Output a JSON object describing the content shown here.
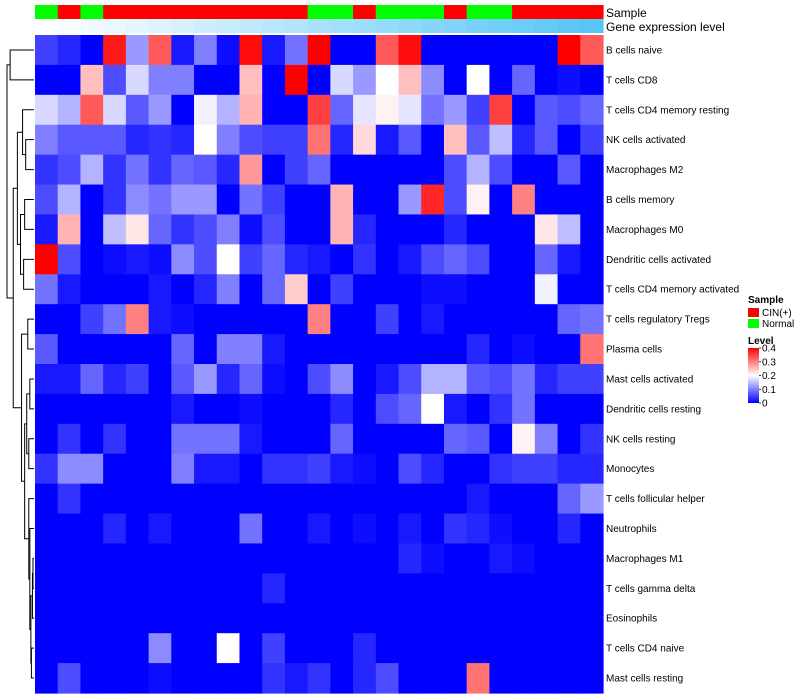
{
  "chart_data": {
    "type": "heatmap",
    "title": "",
    "annotation_rows": [
      "Sample",
      "Gene expression level"
    ],
    "sample_groups": [
      "Normal",
      "CIN(+)",
      "Normal",
      "CIN(+)",
      "CIN(+)",
      "CIN(+)",
      "CIN(+)",
      "CIN(+)",
      "CIN(+)",
      "CIN(+)",
      "CIN(+)",
      "CIN(+)",
      "Normal",
      "Normal",
      "CIN(+)",
      "Normal",
      "Normal",
      "Normal",
      "CIN(+)",
      "Normal",
      "Normal",
      "CIN(+)",
      "CIN(+)",
      "CIN(+)",
      "CIN(+)"
    ],
    "gene_expression_level": [
      0,
      0.04,
      0.08,
      0.12,
      0.16,
      0.2,
      0.24,
      0.28,
      0.32,
      0.36,
      0.4,
      0.44,
      0.48,
      0.52,
      0.56,
      0.6,
      0.64,
      0.68,
      0.72,
      0.76,
      0.8,
      0.84,
      0.88,
      0.92,
      0.96
    ],
    "rows": [
      "B cells naive",
      "T cells CD8",
      "T cells CD4 memory resting",
      "NK cells activated",
      "Macrophages M2",
      "B cells memory",
      "Macrophages M0",
      "Dendritic cells activated",
      "T cells CD4 memory activated",
      "T cells regulatory  Tregs",
      "Plasma cells",
      "Mast cells activated",
      "Dendritic cells resting",
      "NK cells resting",
      "Monocytes",
      "T cells follicular helper",
      "Neutrophils",
      "Macrophages M1",
      "T cells gamma delta",
      "Eosinophils",
      "T cells CD4 naive",
      "Mast cells resting"
    ],
    "values": [
      [
        0.05,
        0.03,
        0.0,
        0.38,
        0.12,
        0.33,
        0.02,
        0.1,
        0.01,
        0.39,
        0.02,
        0.09,
        0.4,
        0.0,
        0.0,
        0.33,
        0.39,
        0.0,
        0.0,
        0.0,
        0.0,
        0.0,
        0.0,
        0.4,
        0.33
      ],
      [
        0.0,
        0.0,
        0.25,
        0.06,
        0.17,
        0.1,
        0.1,
        0.0,
        0.0,
        0.25,
        0.0,
        0.4,
        0.0,
        0.17,
        0.12,
        0.2,
        0.25,
        0.11,
        0.0,
        0.2,
        0.0,
        0.08,
        0.0,
        0.01,
        0.0
      ],
      [
        0.17,
        0.14,
        0.33,
        0.17,
        0.07,
        0.12,
        0.0,
        0.19,
        0.14,
        0.26,
        0.0,
        0.0,
        0.35,
        0.08,
        0.18,
        0.21,
        0.18,
        0.09,
        0.12,
        0.05,
        0.35,
        0.0,
        0.07,
        0.06,
        0.08
      ],
      [
        0.1,
        0.07,
        0.07,
        0.07,
        0.03,
        0.04,
        0.03,
        0.2,
        0.1,
        0.06,
        0.05,
        0.05,
        0.31,
        0.03,
        0.23,
        0.02,
        0.07,
        0.0,
        0.25,
        0.07,
        0.15,
        0.03,
        0.07,
        0.0,
        0.05
      ],
      [
        0.04,
        0.06,
        0.14,
        0.04,
        0.09,
        0.04,
        0.08,
        0.07,
        0.03,
        0.28,
        0.0,
        0.05,
        0.08,
        0.0,
        0.0,
        0.0,
        0.0,
        0.0,
        0.06,
        0.14,
        0.06,
        0.0,
        0.0,
        0.07,
        0.0
      ],
      [
        0.06,
        0.14,
        0.0,
        0.04,
        0.11,
        0.09,
        0.12,
        0.12,
        0.0,
        0.09,
        0.05,
        0.0,
        0.0,
        0.26,
        0.0,
        0.0,
        0.12,
        0.37,
        0.06,
        0.21,
        0.0,
        0.3,
        0.0,
        0.0,
        0.0
      ],
      [
        0.02,
        0.26,
        0.0,
        0.15,
        0.22,
        0.08,
        0.04,
        0.06,
        0.1,
        0.01,
        0.06,
        0.0,
        0.0,
        0.26,
        0.03,
        0.0,
        0.0,
        0.0,
        0.03,
        0.0,
        0.0,
        0.0,
        0.22,
        0.15,
        0.0
      ],
      [
        0.4,
        0.06,
        0.0,
        0.01,
        0.02,
        0.01,
        0.11,
        0.06,
        0.2,
        0.05,
        0.08,
        0.03,
        0.02,
        0.0,
        0.04,
        0.0,
        0.02,
        0.06,
        0.08,
        0.06,
        0.0,
        0.0,
        0.08,
        0.02,
        0.0
      ],
      [
        0.09,
        0.02,
        0.0,
        0.0,
        0.0,
        0.02,
        0.0,
        0.03,
        0.1,
        0.0,
        0.08,
        0.24,
        0.0,
        0.05,
        0.0,
        0.0,
        0.0,
        0.01,
        0.01,
        0.0,
        0.0,
        0.0,
        0.19,
        0.0,
        0.0
      ],
      [
        0.0,
        0.0,
        0.05,
        0.09,
        0.3,
        0.02,
        0.01,
        0.0,
        0.0,
        0.0,
        0.0,
        0.0,
        0.3,
        0.0,
        0.0,
        0.05,
        0.0,
        0.02,
        0.0,
        0.0,
        0.0,
        0.0,
        0.0,
        0.08,
        0.09
      ],
      [
        0.07,
        0.0,
        0.0,
        0.0,
        0.0,
        0.0,
        0.08,
        0.0,
        0.1,
        0.1,
        0.02,
        0.0,
        0.0,
        0.0,
        0.0,
        0.0,
        0.0,
        0.0,
        0.0,
        0.03,
        0.0,
        0.01,
        0.0,
        0.0,
        0.31
      ],
      [
        0.02,
        0.02,
        0.08,
        0.03,
        0.05,
        0.0,
        0.07,
        0.12,
        0.03,
        0.08,
        0.01,
        0.0,
        0.06,
        0.11,
        0.0,
        0.02,
        0.06,
        0.14,
        0.14,
        0.07,
        0.06,
        0.09,
        0.03,
        0.05,
        0.05
      ],
      [
        0.0,
        0.0,
        0.0,
        0.0,
        0.0,
        0.0,
        0.02,
        0.0,
        0.0,
        0.01,
        0.0,
        0.0,
        0.0,
        0.03,
        0.0,
        0.06,
        0.08,
        0.2,
        0.02,
        0.0,
        0.04,
        0.09,
        0.0,
        0.0,
        0.0
      ],
      [
        0.0,
        0.04,
        0.0,
        0.04,
        0.0,
        0.0,
        0.09,
        0.09,
        0.09,
        0.02,
        0.0,
        0.0,
        0.0,
        0.08,
        0.0,
        0.0,
        0.0,
        0.0,
        0.08,
        0.07,
        0.0,
        0.21,
        0.1,
        0.0,
        0.04
      ],
      [
        0.04,
        0.11,
        0.11,
        0.0,
        0.0,
        0.0,
        0.1,
        0.02,
        0.02,
        0.0,
        0.04,
        0.04,
        0.05,
        0.02,
        0.01,
        0.0,
        0.06,
        0.03,
        0.0,
        0.0,
        0.04,
        0.05,
        0.05,
        0.03,
        0.03
      ],
      [
        0.0,
        0.04,
        0.0,
        0.0,
        0.0,
        0.0,
        0.0,
        0.0,
        0.0,
        0.0,
        0.0,
        0.0,
        0.0,
        0.0,
        0.0,
        0.0,
        0.0,
        0.0,
        0.0,
        0.02,
        0.0,
        0.0,
        0.0,
        0.08,
        0.12
      ],
      [
        0.0,
        0.0,
        0.0,
        0.03,
        0.0,
        0.02,
        0.0,
        0.0,
        0.0,
        0.09,
        0.0,
        0.0,
        0.02,
        0.0,
        0.01,
        0.0,
        0.02,
        0.0,
        0.04,
        0.03,
        0.01,
        0.0,
        0.0,
        0.03,
        0.0
      ],
      [
        0.0,
        0.0,
        0.0,
        0.0,
        0.0,
        0.0,
        0.0,
        0.0,
        0.0,
        0.0,
        0.0,
        0.0,
        0.0,
        0.0,
        0.0,
        0.0,
        0.03,
        0.01,
        0.0,
        0.0,
        0.02,
        0.01,
        0.0,
        0.0,
        0.0
      ],
      [
        0.0,
        0.0,
        0.0,
        0.0,
        0.0,
        0.0,
        0.0,
        0.0,
        0.0,
        0.0,
        0.03,
        0.0,
        0.0,
        0.0,
        0.0,
        0.0,
        0.0,
        0.0,
        0.0,
        0.0,
        0.0,
        0.0,
        0.0,
        0.0,
        0.0
      ],
      [
        0.0,
        0.0,
        0.0,
        0.0,
        0.0,
        0.0,
        0.0,
        0.0,
        0.0,
        0.0,
        0.0,
        0.0,
        0.0,
        0.0,
        0.0,
        0.0,
        0.0,
        0.0,
        0.0,
        0.0,
        0.0,
        0.0,
        0.0,
        0.0,
        0.0
      ],
      [
        0.0,
        0.0,
        0.0,
        0.0,
        0.0,
        0.11,
        0.0,
        0.0,
        0.2,
        0.0,
        0.05,
        0.0,
        0.0,
        0.0,
        0.03,
        0.0,
        0.0,
        0.0,
        0.0,
        0.0,
        0.0,
        0.0,
        0.0,
        0.0,
        0.0
      ],
      [
        0.0,
        0.06,
        0.0,
        0.0,
        0.0,
        0.01,
        0.0,
        0.0,
        0.0,
        0.0,
        0.04,
        0.02,
        0.04,
        0.0,
        0.03,
        0.06,
        0.0,
        0.0,
        0.0,
        0.31,
        0.0,
        0.0,
        0.0,
        0.0,
        0.0
      ]
    ],
    "legend": {
      "sample_title": "Sample",
      "sample_entries": [
        {
          "label": "CIN(+)",
          "color": "#ff0000"
        },
        {
          "label": "Normal",
          "color": "#00ff00"
        }
      ],
      "level_title": "Level",
      "level_ticks": [
        "0.4",
        "0.3",
        "0.2",
        "0.1",
        "0"
      ],
      "level_tick_values": [
        0.4,
        0.3,
        0.2,
        0.1,
        0
      ],
      "level_range": [
        0,
        0.4
      ],
      "placement": "right"
    },
    "colors": {
      "low": "#0000ff",
      "mid": "#ffffff",
      "high": "#ff0000",
      "normal": "#00ff00",
      "cin": "#ff0000",
      "expr_low": "#ffffff",
      "expr_high": "#4fc3f7"
    },
    "clustered_rows": true
  }
}
